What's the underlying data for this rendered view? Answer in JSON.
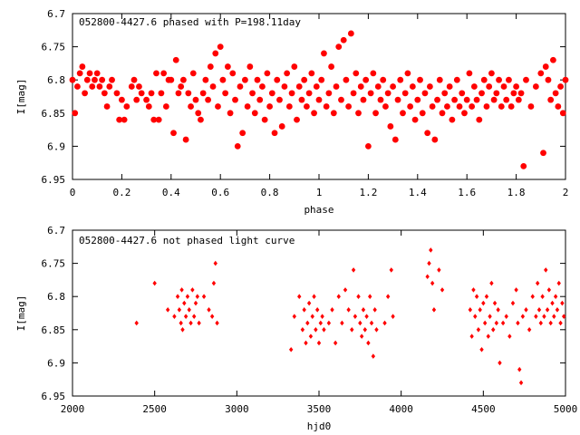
{
  "chart_data": [
    {
      "type": "scatter",
      "title": "052800-4427.6 phased with P=198.11day",
      "xlabel": "phase",
      "ylabel": "I[mag]",
      "xlim": [
        0,
        2
      ],
      "ylim": [
        6.7,
        6.95
      ],
      "y_inverted": true,
      "grid": false,
      "x_ticks": [
        "0",
        "0.2",
        "0.4",
        "0.6",
        "0.8",
        "1",
        "1.2",
        "1.4",
        "1.6",
        "1.8",
        "2"
      ],
      "y_ticks": [
        "6.7",
        "6.75",
        "6.8",
        "6.85",
        "6.9",
        "6.95"
      ],
      "marker": "filled-circle",
      "color": "#ff0000",
      "points": [
        [
          0.0,
          6.8
        ],
        [
          0.01,
          6.85
        ],
        [
          0.02,
          6.81
        ],
        [
          0.03,
          6.79
        ],
        [
          0.04,
          6.78
        ],
        [
          0.05,
          6.82
        ],
        [
          0.06,
          6.8
        ],
        [
          0.07,
          6.79
        ],
        [
          0.08,
          6.81
        ],
        [
          0.09,
          6.8
        ],
        [
          0.1,
          6.79
        ],
        [
          0.11,
          6.81
        ],
        [
          0.12,
          6.8
        ],
        [
          0.13,
          6.82
        ],
        [
          0.14,
          6.84
        ],
        [
          0.15,
          6.81
        ],
        [
          0.16,
          6.8
        ],
        [
          0.18,
          6.82
        ],
        [
          0.19,
          6.86
        ],
        [
          0.2,
          6.83
        ],
        [
          0.21,
          6.86
        ],
        [
          0.22,
          6.84
        ],
        [
          0.24,
          6.81
        ],
        [
          0.25,
          6.8
        ],
        [
          0.26,
          6.83
        ],
        [
          0.27,
          6.81
        ],
        [
          0.28,
          6.82
        ],
        [
          0.3,
          6.83
        ],
        [
          0.31,
          6.84
        ],
        [
          0.32,
          6.82
        ],
        [
          0.33,
          6.86
        ],
        [
          0.34,
          6.79
        ],
        [
          0.35,
          6.86
        ],
        [
          0.36,
          6.82
        ],
        [
          0.37,
          6.79
        ],
        [
          0.38,
          6.84
        ],
        [
          0.39,
          6.8
        ],
        [
          0.4,
          6.8
        ],
        [
          0.41,
          6.88
        ],
        [
          0.42,
          6.77
        ],
        [
          0.43,
          6.82
        ],
        [
          0.44,
          6.81
        ],
        [
          0.45,
          6.8
        ],
        [
          0.46,
          6.89
        ],
        [
          0.47,
          6.82
        ],
        [
          0.48,
          6.84
        ],
        [
          0.49,
          6.79
        ],
        [
          0.5,
          6.83
        ],
        [
          0.51,
          6.85
        ],
        [
          0.52,
          6.86
        ],
        [
          0.53,
          6.82
        ],
        [
          0.54,
          6.8
        ],
        [
          0.55,
          6.83
        ],
        [
          0.56,
          6.78
        ],
        [
          0.57,
          6.81
        ],
        [
          0.58,
          6.76
        ],
        [
          0.59,
          6.84
        ],
        [
          0.6,
          6.75
        ],
        [
          0.61,
          6.8
        ],
        [
          0.62,
          6.82
        ],
        [
          0.63,
          6.78
        ],
        [
          0.64,
          6.85
        ],
        [
          0.65,
          6.79
        ],
        [
          0.66,
          6.83
        ],
        [
          0.67,
          6.9
        ],
        [
          0.68,
          6.81
        ],
        [
          0.69,
          6.88
        ],
        [
          0.7,
          6.8
        ],
        [
          0.71,
          6.84
        ],
        [
          0.72,
          6.78
        ],
        [
          0.73,
          6.82
        ],
        [
          0.74,
          6.85
        ],
        [
          0.75,
          6.8
        ],
        [
          0.76,
          6.83
        ],
        [
          0.77,
          6.81
        ],
        [
          0.78,
          6.86
        ],
        [
          0.79,
          6.79
        ],
        [
          0.8,
          6.84
        ],
        [
          0.81,
          6.82
        ],
        [
          0.82,
          6.88
        ],
        [
          0.83,
          6.8
        ],
        [
          0.84,
          6.83
        ],
        [
          0.85,
          6.87
        ],
        [
          0.86,
          6.81
        ],
        [
          0.87,
          6.79
        ],
        [
          0.88,
          6.84
        ],
        [
          0.89,
          6.82
        ],
        [
          0.9,
          6.78
        ],
        [
          0.91,
          6.86
        ],
        [
          0.92,
          6.81
        ],
        [
          0.93,
          6.83
        ],
        [
          0.94,
          6.8
        ],
        [
          0.95,
          6.84
        ],
        [
          0.96,
          6.82
        ],
        [
          0.97,
          6.79
        ],
        [
          0.98,
          6.85
        ],
        [
          0.99,
          6.81
        ],
        [
          1.0,
          6.83
        ],
        [
          1.01,
          6.8
        ],
        [
          1.02,
          6.76
        ],
        [
          1.03,
          6.84
        ],
        [
          1.04,
          6.82
        ],
        [
          1.05,
          6.78
        ],
        [
          1.06,
          6.85
        ],
        [
          1.07,
          6.81
        ],
        [
          1.08,
          6.75
        ],
        [
          1.09,
          6.83
        ],
        [
          1.1,
          6.74
        ],
        [
          1.11,
          6.8
        ],
        [
          1.12,
          6.84
        ],
        [
          1.13,
          6.73
        ],
        [
          1.14,
          6.82
        ],
        [
          1.15,
          6.79
        ],
        [
          1.16,
          6.85
        ],
        [
          1.17,
          6.81
        ],
        [
          1.18,
          6.83
        ],
        [
          1.19,
          6.8
        ],
        [
          1.2,
          6.9
        ],
        [
          1.21,
          6.82
        ],
        [
          1.22,
          6.79
        ],
        [
          1.23,
          6.85
        ],
        [
          1.24,
          6.81
        ],
        [
          1.25,
          6.83
        ],
        [
          1.26,
          6.8
        ],
        [
          1.27,
          6.84
        ],
        [
          1.28,
          6.82
        ],
        [
          1.29,
          6.87
        ],
        [
          1.3,
          6.81
        ],
        [
          1.31,
          6.89
        ],
        [
          1.32,
          6.83
        ],
        [
          1.33,
          6.8
        ],
        [
          1.34,
          6.85
        ],
        [
          1.35,
          6.82
        ],
        [
          1.36,
          6.79
        ],
        [
          1.37,
          6.84
        ],
        [
          1.38,
          6.81
        ],
        [
          1.39,
          6.86
        ],
        [
          1.4,
          6.83
        ],
        [
          1.41,
          6.8
        ],
        [
          1.42,
          6.85
        ],
        [
          1.43,
          6.82
        ],
        [
          1.44,
          6.88
        ],
        [
          1.45,
          6.81
        ],
        [
          1.46,
          6.84
        ],
        [
          1.47,
          6.89
        ],
        [
          1.48,
          6.83
        ],
        [
          1.49,
          6.8
        ],
        [
          1.5,
          6.85
        ],
        [
          1.51,
          6.82
        ],
        [
          1.52,
          6.84
        ],
        [
          1.53,
          6.81
        ],
        [
          1.54,
          6.86
        ],
        [
          1.55,
          6.83
        ],
        [
          1.56,
          6.8
        ],
        [
          1.57,
          6.84
        ],
        [
          1.58,
          6.82
        ],
        [
          1.59,
          6.85
        ],
        [
          1.6,
          6.83
        ],
        [
          1.61,
          6.79
        ],
        [
          1.62,
          6.84
        ],
        [
          1.63,
          6.81
        ],
        [
          1.64,
          6.83
        ],
        [
          1.65,
          6.86
        ],
        [
          1.66,
          6.82
        ],
        [
          1.67,
          6.8
        ],
        [
          1.68,
          6.84
        ],
        [
          1.69,
          6.81
        ],
        [
          1.7,
          6.79
        ],
        [
          1.71,
          6.83
        ],
        [
          1.72,
          6.82
        ],
        [
          1.73,
          6.8
        ],
        [
          1.74,
          6.84
        ],
        [
          1.75,
          6.81
        ],
        [
          1.76,
          6.83
        ],
        [
          1.77,
          6.8
        ],
        [
          1.78,
          6.84
        ],
        [
          1.79,
          6.82
        ],
        [
          1.8,
          6.81
        ],
        [
          1.81,
          6.83
        ],
        [
          1.82,
          6.82
        ],
        [
          1.83,
          6.93
        ],
        [
          1.84,
          6.8
        ],
        [
          1.86,
          6.84
        ],
        [
          1.88,
          6.81
        ],
        [
          1.9,
          6.79
        ],
        [
          1.91,
          6.91
        ],
        [
          1.92,
          6.78
        ],
        [
          1.93,
          6.8
        ],
        [
          1.94,
          6.83
        ],
        [
          1.95,
          6.77
        ],
        [
          1.96,
          6.82
        ],
        [
          1.97,
          6.84
        ],
        [
          1.98,
          6.81
        ],
        [
          1.99,
          6.85
        ],
        [
          2.0,
          6.8
        ]
      ]
    },
    {
      "type": "scatter",
      "title": "052800-4427.6 not phased light curve",
      "xlabel": "hjd0",
      "ylabel": "I[mag]",
      "xlim": [
        2000,
        5000
      ],
      "ylim": [
        6.7,
        6.95
      ],
      "y_inverted": true,
      "grid": false,
      "x_ticks": [
        "2000",
        "2500",
        "3000",
        "3500",
        "4000",
        "4500",
        "5000"
      ],
      "y_ticks": [
        "6.7",
        "6.75",
        "6.8",
        "6.85",
        "6.9",
        "6.95"
      ],
      "marker": "small-diamond",
      "color": "#ff0000",
      "points": [
        [
          2390,
          6.84
        ],
        [
          2500,
          6.78
        ],
        [
          2580,
          6.82
        ],
        [
          2620,
          6.83
        ],
        [
          2640,
          6.8
        ],
        [
          2650,
          6.82
        ],
        [
          2660,
          6.84
        ],
        [
          2665,
          6.79
        ],
        [
          2670,
          6.85
        ],
        [
          2680,
          6.81
        ],
        [
          2690,
          6.83
        ],
        [
          2700,
          6.8
        ],
        [
          2710,
          6.82
        ],
        [
          2720,
          6.84
        ],
        [
          2730,
          6.79
        ],
        [
          2740,
          6.83
        ],
        [
          2750,
          6.81
        ],
        [
          2760,
          6.8
        ],
        [
          2770,
          6.84
        ],
        [
          2800,
          6.8
        ],
        [
          2830,
          6.82
        ],
        [
          2850,
          6.83
        ],
        [
          2860,
          6.78
        ],
        [
          2870,
          6.75
        ],
        [
          2880,
          6.84
        ],
        [
          3330,
          6.88
        ],
        [
          3350,
          6.83
        ],
        [
          3380,
          6.8
        ],
        [
          3400,
          6.85
        ],
        [
          3410,
          6.82
        ],
        [
          3420,
          6.87
        ],
        [
          3430,
          6.84
        ],
        [
          3440,
          6.81
        ],
        [
          3450,
          6.86
        ],
        [
          3460,
          6.83
        ],
        [
          3470,
          6.8
        ],
        [
          3480,
          6.85
        ],
        [
          3490,
          6.82
        ],
        [
          3500,
          6.87
        ],
        [
          3510,
          6.84
        ],
        [
          3520,
          6.83
        ],
        [
          3530,
          6.85
        ],
        [
          3560,
          6.84
        ],
        [
          3580,
          6.82
        ],
        [
          3600,
          6.87
        ],
        [
          3620,
          6.8
        ],
        [
          3640,
          6.84
        ],
        [
          3660,
          6.79
        ],
        [
          3680,
          6.82
        ],
        [
          3700,
          6.85
        ],
        [
          3710,
          6.76
        ],
        [
          3720,
          6.83
        ],
        [
          3740,
          6.8
        ],
        [
          3750,
          6.84
        ],
        [
          3760,
          6.86
        ],
        [
          3770,
          6.82
        ],
        [
          3780,
          6.85
        ],
        [
          3790,
          6.83
        ],
        [
          3800,
          6.87
        ],
        [
          3810,
          6.8
        ],
        [
          3820,
          6.84
        ],
        [
          3830,
          6.89
        ],
        [
          3840,
          6.82
        ],
        [
          3850,
          6.85
        ],
        [
          3900,
          6.84
        ],
        [
          3920,
          6.8
        ],
        [
          3940,
          6.76
        ],
        [
          3950,
          6.83
        ],
        [
          4160,
          6.77
        ],
        [
          4170,
          6.75
        ],
        [
          4180,
          6.73
        ],
        [
          4190,
          6.78
        ],
        [
          4200,
          6.82
        ],
        [
          4230,
          6.76
        ],
        [
          4250,
          6.79
        ],
        [
          4420,
          6.82
        ],
        [
          4430,
          6.86
        ],
        [
          4440,
          6.79
        ],
        [
          4450,
          6.83
        ],
        [
          4460,
          6.8
        ],
        [
          4470,
          6.85
        ],
        [
          4480,
          6.82
        ],
        [
          4490,
          6.88
        ],
        [
          4500,
          6.81
        ],
        [
          4510,
          6.84
        ],
        [
          4520,
          6.8
        ],
        [
          4530,
          6.86
        ],
        [
          4540,
          6.83
        ],
        [
          4550,
          6.78
        ],
        [
          4560,
          6.85
        ],
        [
          4570,
          6.81
        ],
        [
          4580,
          6.84
        ],
        [
          4590,
          6.82
        ],
        [
          4600,
          6.9
        ],
        [
          4620,
          6.84
        ],
        [
          4640,
          6.83
        ],
        [
          4660,
          6.86
        ],
        [
          4680,
          6.81
        ],
        [
          4700,
          6.79
        ],
        [
          4710,
          6.84
        ],
        [
          4720,
          6.91
        ],
        [
          4730,
          6.93
        ],
        [
          4740,
          6.83
        ],
        [
          4760,
          6.82
        ],
        [
          4780,
          6.85
        ],
        [
          4800,
          6.8
        ],
        [
          4820,
          6.83
        ],
        [
          4830,
          6.78
        ],
        [
          4840,
          6.82
        ],
        [
          4850,
          6.84
        ],
        [
          4860,
          6.8
        ],
        [
          4870,
          6.83
        ],
        [
          4880,
          6.76
        ],
        [
          4890,
          6.82
        ],
        [
          4900,
          6.79
        ],
        [
          4910,
          6.84
        ],
        [
          4920,
          6.81
        ],
        [
          4930,
          6.83
        ],
        [
          4940,
          6.8
        ],
        [
          4950,
          6.82
        ],
        [
          4960,
          6.78
        ],
        [
          4970,
          6.84
        ],
        [
          4980,
          6.81
        ],
        [
          4990,
          6.83
        ]
      ]
    }
  ]
}
